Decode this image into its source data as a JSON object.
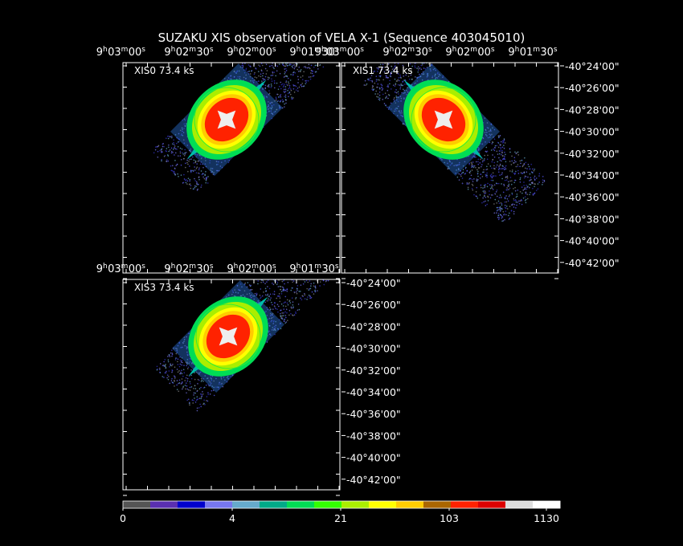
{
  "title": "SUZAKU XIS observation of VELA X-1  (Sequence 403045010)",
  "panels": [
    {
      "label": "XIS0 73.4 ks"
    },
    {
      "label": "XIS1 73.4 ks"
    },
    {
      "label": "XIS3 73.4 ks"
    }
  ],
  "ra_ticks": [
    {
      "h": "9",
      "m": "03",
      "s": "00"
    },
    {
      "h": "9",
      "m": "02",
      "s": "30"
    },
    {
      "h": "9",
      "m": "02",
      "s": "00"
    },
    {
      "h": "9",
      "m": "01",
      "s": "30"
    }
  ],
  "dec_ticks": [
    "-40°24'00\"",
    "-40°26'00\"",
    "-40°28'00\"",
    "-40°30'00\"",
    "-40°32'00\"",
    "-40°34'00\"",
    "-40°36'00\"",
    "-40°38'00\"",
    "-40°40'00\"",
    "-40°42'00\""
  ],
  "colorbar": {
    "colors": [
      "#555555",
      "#5a2fb0",
      "#0000cc",
      "#7777ee",
      "#66aacc",
      "#00aa88",
      "#00dd55",
      "#33ff00",
      "#aaee00",
      "#ffff00",
      "#ffcc00",
      "#aa6600",
      "#ff2200",
      "#dd0000",
      "#dddddd",
      "#ffffff"
    ],
    "labels": [
      "0",
      "4",
      "21",
      "103",
      "1130"
    ]
  }
}
